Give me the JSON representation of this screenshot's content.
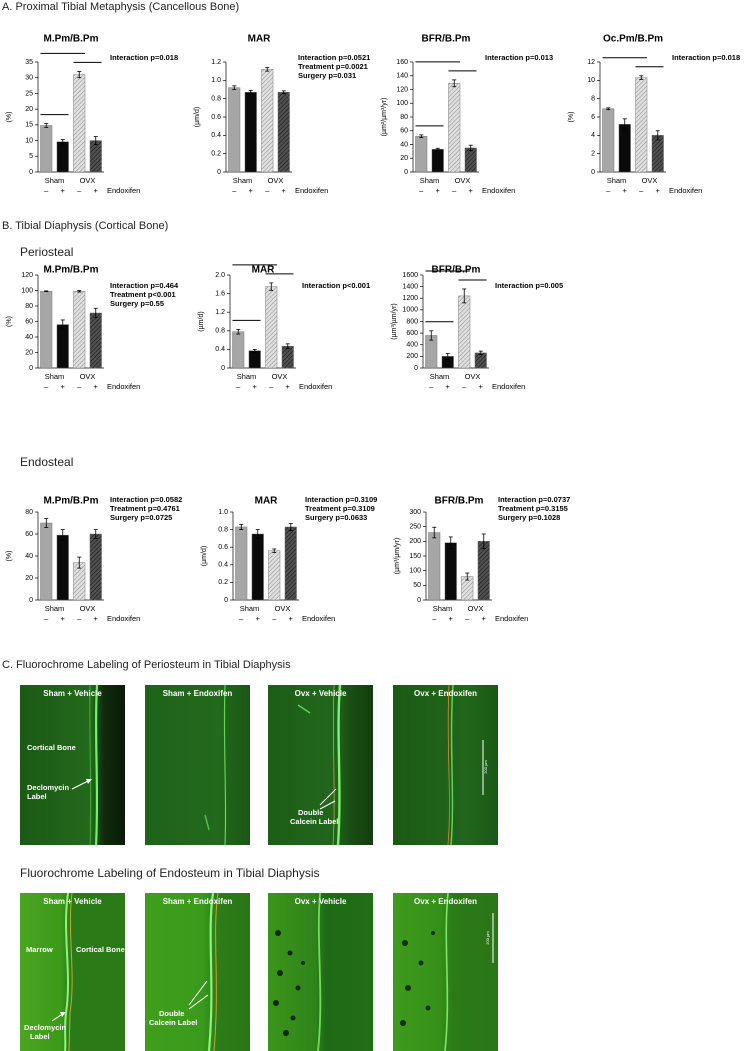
{
  "sections": {
    "a": "A. Proximal Tibial Metaphysis (Cancellous Bone)",
    "b": "B. Tibial Diaphysis (Cortical Bone)",
    "periosteal": "Periosteal",
    "endosteal": "Endosteal",
    "c1": "C. Fluorochrome Labeling of Periosteum in Tibial Diaphysis",
    "c2": "Fluorochrome Labeling of Endosteum in Tibial Diaphysis"
  },
  "chart_data": [
    {
      "type": "bar",
      "title": "M.Pm/B.Pm",
      "ylabel": "(%)",
      "categories": [
        "–",
        "+",
        "–",
        "+"
      ],
      "groups": [
        "Sham",
        "OVX"
      ],
      "group_label": "Endoxifen",
      "values": [
        14.8,
        9.6,
        31,
        10
      ],
      "errors": [
        0.6,
        0.7,
        1,
        1.3
      ],
      "colors": [
        "#a6a6a6",
        "#0a0a0a",
        "#e0e0e0",
        "#505050"
      ],
      "hatched": [
        false,
        false,
        true,
        true
      ],
      "ylim": [
        0,
        35
      ],
      "yticks": [
        0,
        5,
        10,
        15,
        20,
        25,
        30,
        35
      ],
      "annotations": [
        "Interaction p=0.018"
      ],
      "significance": [
        [
          0,
          1
        ],
        [
          2,
          3
        ],
        [
          0,
          2
        ]
      ]
    },
    {
      "type": "bar",
      "title": "MAR",
      "ylabel": "(µm/d)",
      "categories": [
        "–",
        "+",
        "–",
        "+"
      ],
      "groups": [
        "Sham",
        "OVX"
      ],
      "group_label": "Endoxifen",
      "values": [
        0.92,
        0.87,
        1.12,
        0.87
      ],
      "errors": [
        0.02,
        0.02,
        0.02,
        0.015
      ],
      "colors": [
        "#a6a6a6",
        "#0a0a0a",
        "#e0e0e0",
        "#505050"
      ],
      "hatched": [
        false,
        false,
        true,
        true
      ],
      "ylim": [
        0,
        1.2
      ],
      "yticks": [
        0,
        0.2,
        0.4,
        0.6,
        0.8,
        {
          "value": 1,
          "label": "1.0"
        },
        1.2
      ],
      "annotations": [
        "Interaction p=0.0521",
        "Treatment p=0.0021",
        "Surgery p=0.031"
      ],
      "significance": []
    },
    {
      "type": "bar",
      "title": "BFR/B.Pm",
      "ylabel": "(µm²/µm³/yr)",
      "categories": [
        "–",
        "+",
        "–",
        "+"
      ],
      "groups": [
        "Sham",
        "OVX"
      ],
      "group_label": "Endoxifen",
      "values": [
        52,
        33,
        129,
        35
      ],
      "errors": [
        2,
        1.5,
        5,
        4
      ],
      "colors": [
        "#a6a6a6",
        "#0a0a0a",
        "#e0e0e0",
        "#505050"
      ],
      "hatched": [
        false,
        false,
        true,
        true
      ],
      "ylim": [
        0,
        160
      ],
      "yticks": [
        0,
        20,
        40,
        60,
        80,
        100,
        120,
        140,
        160
      ],
      "annotations": [
        "Interaction p=0.013"
      ],
      "significance": [
        [
          0,
          1
        ],
        [
          2,
          3
        ],
        [
          0,
          2
        ]
      ]
    },
    {
      "type": "bar",
      "title": "Oc.Pm/B.Pm",
      "ylabel": "(%)",
      "categories": [
        "–",
        "+",
        "–",
        "+"
      ],
      "groups": [
        "Sham",
        "OVX"
      ],
      "group_label": "Endoxifen",
      "values": [
        6.9,
        5.2,
        10.3,
        4.0
      ],
      "errors": [
        0.1,
        0.6,
        0.2,
        0.5
      ],
      "colors": [
        "#a6a6a6",
        "#0a0a0a",
        "#e0e0e0",
        "#505050"
      ],
      "hatched": [
        false,
        false,
        true,
        true
      ],
      "ylim": [
        0,
        12
      ],
      "yticks": [
        0,
        2,
        4,
        6,
        8,
        10,
        12
      ],
      "annotations": [
        "Interaction p=0.018"
      ],
      "significance": [
        [
          2,
          3
        ],
        [
          0,
          2
        ]
      ]
    },
    {
      "type": "bar",
      "title": "M.Pm/B.Pm",
      "ylabel": "(%)",
      "categories": [
        "–",
        "+",
        "–",
        "+"
      ],
      "groups": [
        "Sham",
        "OVX"
      ],
      "group_label": "Endoxifen",
      "values": [
        99,
        56,
        99,
        71
      ],
      "errors": [
        0.5,
        6,
        1,
        6
      ],
      "colors": [
        "#a6a6a6",
        "#0a0a0a",
        "#e0e0e0",
        "#505050"
      ],
      "hatched": [
        false,
        false,
        true,
        true
      ],
      "ylim": [
        0,
        120
      ],
      "yticks": [
        0,
        20,
        40,
        60,
        80,
        100,
        120
      ],
      "annotations": [
        "Interaction p=0.464",
        "Treatment p<0.001",
        "Surgery p=0.55"
      ],
      "significance": []
    },
    {
      "type": "bar",
      "title": "MAR",
      "ylabel": "(µm/d)",
      "categories": [
        "–",
        "+",
        "–",
        "+"
      ],
      "groups": [
        "Sham",
        "OVX"
      ],
      "group_label": "Endoxifen",
      "values": [
        0.78,
        0.37,
        1.75,
        0.47
      ],
      "errors": [
        0.05,
        0.03,
        0.08,
        0.05
      ],
      "colors": [
        "#a6a6a6",
        "#0a0a0a",
        "#e0e0e0",
        "#505050"
      ],
      "hatched": [
        false,
        false,
        true,
        true
      ],
      "ylim": [
        0,
        2
      ],
      "yticks": [
        0,
        0.4,
        0.8,
        1.2,
        1.6,
        {
          "value": 2,
          "label": "2.0"
        }
      ],
      "annotations": [
        "Interaction p<0.001"
      ],
      "significance": [
        [
          0,
          1
        ],
        [
          2,
          3
        ],
        [
          0,
          2
        ]
      ]
    },
    {
      "type": "bar",
      "title": "BFR/B.Pm",
      "ylabel": "(µm³/µm/yr)",
      "categories": [
        "–",
        "+",
        "–",
        "+"
      ],
      "groups": [
        "Sham",
        "OVX"
      ],
      "group_label": "Endoxifen",
      "values": [
        560,
        200,
        1240,
        260
      ],
      "errors": [
        80,
        50,
        120,
        30
      ],
      "colors": [
        "#a6a6a6",
        "#0a0a0a",
        "#e0e0e0",
        "#505050"
      ],
      "hatched": [
        false,
        false,
        true,
        true
      ],
      "ylim": [
        0,
        1600
      ],
      "yticks": [
        0,
        200,
        400,
        600,
        800,
        1000,
        1200,
        1400,
        1600
      ],
      "annotations": [
        "Interaction p=0.005"
      ],
      "significance": [
        [
          0,
          1
        ],
        [
          2,
          3
        ],
        [
          0,
          2
        ]
      ]
    },
    {
      "type": "bar",
      "title": "M.Pm/B.Pm",
      "ylabel": "(%)",
      "categories": [
        "–",
        "+",
        "–",
        "+"
      ],
      "groups": [
        "Sham",
        "OVX"
      ],
      "group_label": "Endoxifen",
      "values": [
        70,
        59,
        34,
        60
      ],
      "errors": [
        4,
        5,
        5,
        4
      ],
      "colors": [
        "#a6a6a6",
        "#0a0a0a",
        "#e0e0e0",
        "#505050"
      ],
      "hatched": [
        false,
        false,
        true,
        true
      ],
      "ylim": [
        0,
        80
      ],
      "yticks": [
        0,
        20,
        40,
        60,
        80
      ],
      "annotations": [
        "Interaction p=0.0582",
        "Treatment p=0.4761",
        "Surgery p=0.0725"
      ],
      "significance": []
    },
    {
      "type": "bar",
      "title": "MAR",
      "ylabel": "(µm/d)",
      "categories": [
        "–",
        "+",
        "–",
        "+"
      ],
      "groups": [
        "Sham",
        "OVX"
      ],
      "group_label": "Endoxifen",
      "values": [
        0.83,
        0.75,
        0.56,
        0.83
      ],
      "errors": [
        0.03,
        0.05,
        0.02,
        0.04
      ],
      "colors": [
        "#a6a6a6",
        "#0a0a0a",
        "#e0e0e0",
        "#505050"
      ],
      "hatched": [
        false,
        false,
        true,
        true
      ],
      "ylim": [
        0,
        1
      ],
      "yticks": [
        0,
        0.2,
        0.4,
        0.6,
        0.8,
        {
          "value": 1,
          "label": "1.0"
        }
      ],
      "annotations": [
        "Interaction p=0.3109",
        "Treatment p=0.3109",
        "Surgery p=0.0633"
      ],
      "significance": []
    },
    {
      "type": "bar",
      "title": "BFR/B.Pm",
      "ylabel": "(µm³/µm/yr)",
      "categories": [
        "–",
        "+",
        "–",
        "+"
      ],
      "groups": [
        "Sham",
        "OVX"
      ],
      "group_label": "Endoxifen",
      "values": [
        230,
        195,
        80,
        200
      ],
      "errors": [
        18,
        20,
        12,
        25
      ],
      "colors": [
        "#a6a6a6",
        "#0a0a0a",
        "#e0e0e0",
        "#505050"
      ],
      "hatched": [
        false,
        false,
        true,
        true
      ],
      "ylim": [
        0,
        300
      ],
      "yticks": [
        0,
        50,
        100,
        150,
        200,
        250,
        300
      ],
      "annotations": [
        "Interaction p=0.0737",
        "Treatment p=0.3155",
        "Surgery p=0.1028"
      ],
      "significance": []
    }
  ],
  "micrographs": {
    "periosteum": {
      "captions": [
        "Sham + Vehicle",
        "Sham + Endoxifen",
        "Ovx + Vehicle",
        "Ovx + Endoxifen"
      ],
      "cortical_bone": "Cortical Bone",
      "declomycin": [
        "Declomycin",
        "Label"
      ],
      "calcein": [
        "Double",
        "Calcein Label"
      ],
      "scale": "200 µm"
    },
    "endosteum": {
      "captions": [
        "Sham + Vehicle",
        "Sham + Endoxifen",
        "Ovx + Vehicle",
        "Ovx + Endoxifen"
      ],
      "marrow": "Marrow",
      "cortical_bone": "Cortical Bone",
      "declomycin": [
        "Declomycin",
        "Label"
      ],
      "calcein": [
        "Double",
        "Calcein Label"
      ],
      "scale": "200 µm"
    }
  }
}
